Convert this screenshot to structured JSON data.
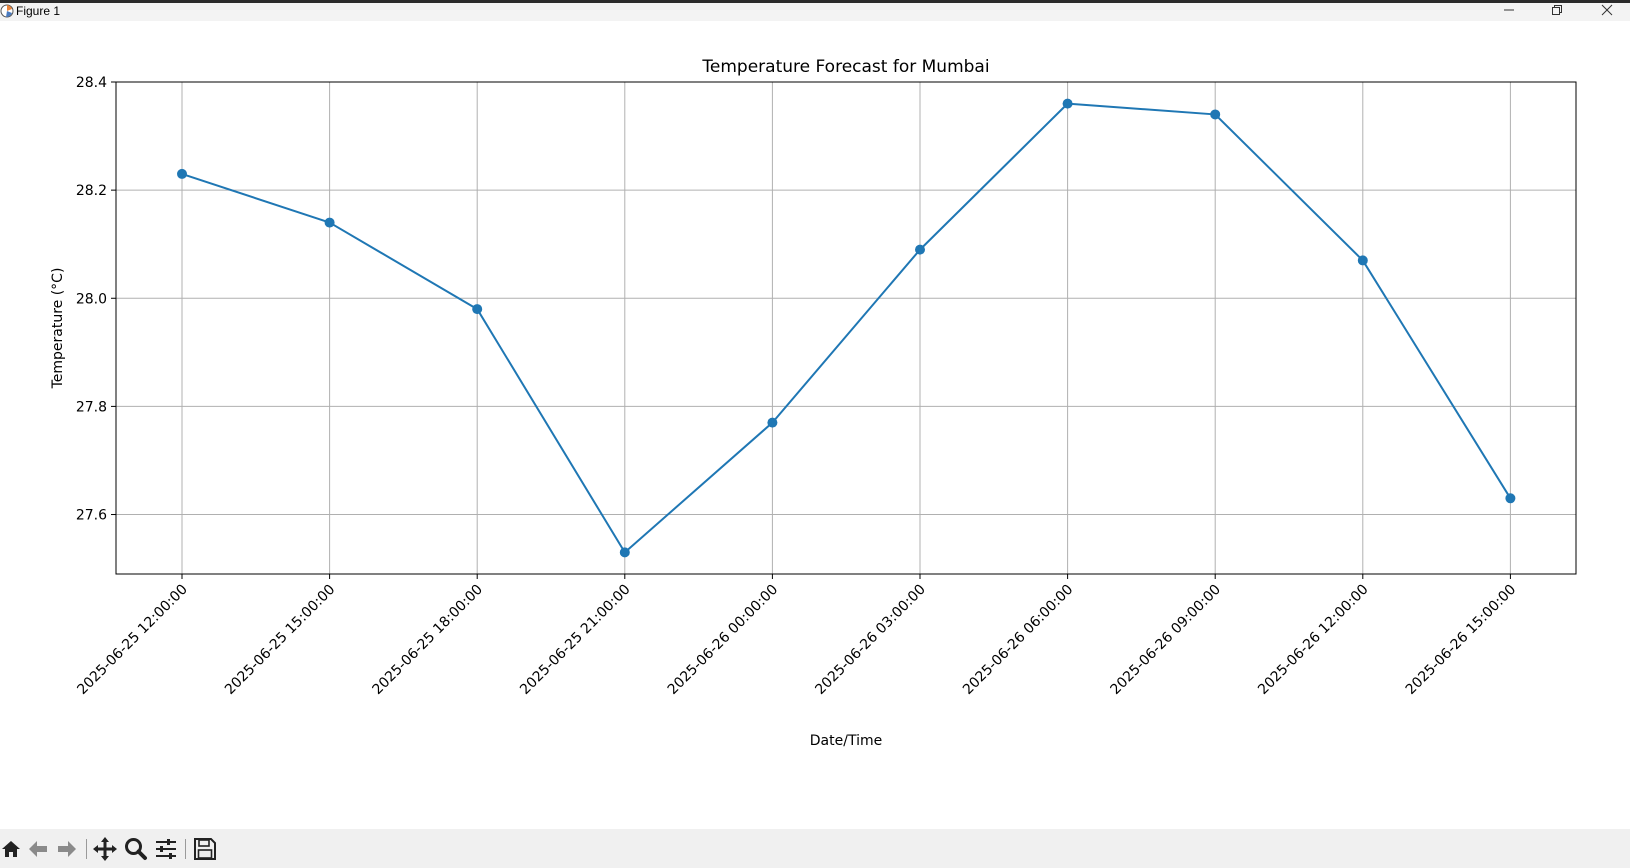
{
  "window": {
    "title": "Figure 1",
    "controls": [
      "minimize-icon",
      "restore-icon",
      "close-icon"
    ]
  },
  "toolbar": {
    "buttons": [
      "home-icon",
      "back-arrow-icon",
      "forward-arrow-icon",
      "pan-icon",
      "zoom-icon",
      "configure-subplots-icon",
      "save-icon"
    ]
  },
  "colors": {
    "line": "#1f77b4",
    "grid": "#b0b0b0",
    "toolbar_bg": "#f0f0f0"
  },
  "chart_data": {
    "type": "line",
    "title": "Temperature Forecast for Mumbai",
    "xlabel": "Date/Time",
    "ylabel": "Temperature (°C)",
    "x": [
      "2025-06-25 12:00:00",
      "2025-06-25 15:00:00",
      "2025-06-25 18:00:00",
      "2025-06-25 21:00:00",
      "2025-06-26 00:00:00",
      "2025-06-26 03:00:00",
      "2025-06-26 06:00:00",
      "2025-06-26 09:00:00",
      "2025-06-26 12:00:00",
      "2025-06-26 15:00:00"
    ],
    "values": [
      28.23,
      28.14,
      27.98,
      27.53,
      27.77,
      28.09,
      28.36,
      28.34,
      28.07,
      27.63
    ],
    "ylim": [
      27.49,
      28.4
    ],
    "yticks": [
      "27.6",
      "27.8",
      "28.0",
      "28.2",
      "28.4"
    ],
    "marker": "circle",
    "grid": true,
    "xtick_rotation_deg": 45
  }
}
